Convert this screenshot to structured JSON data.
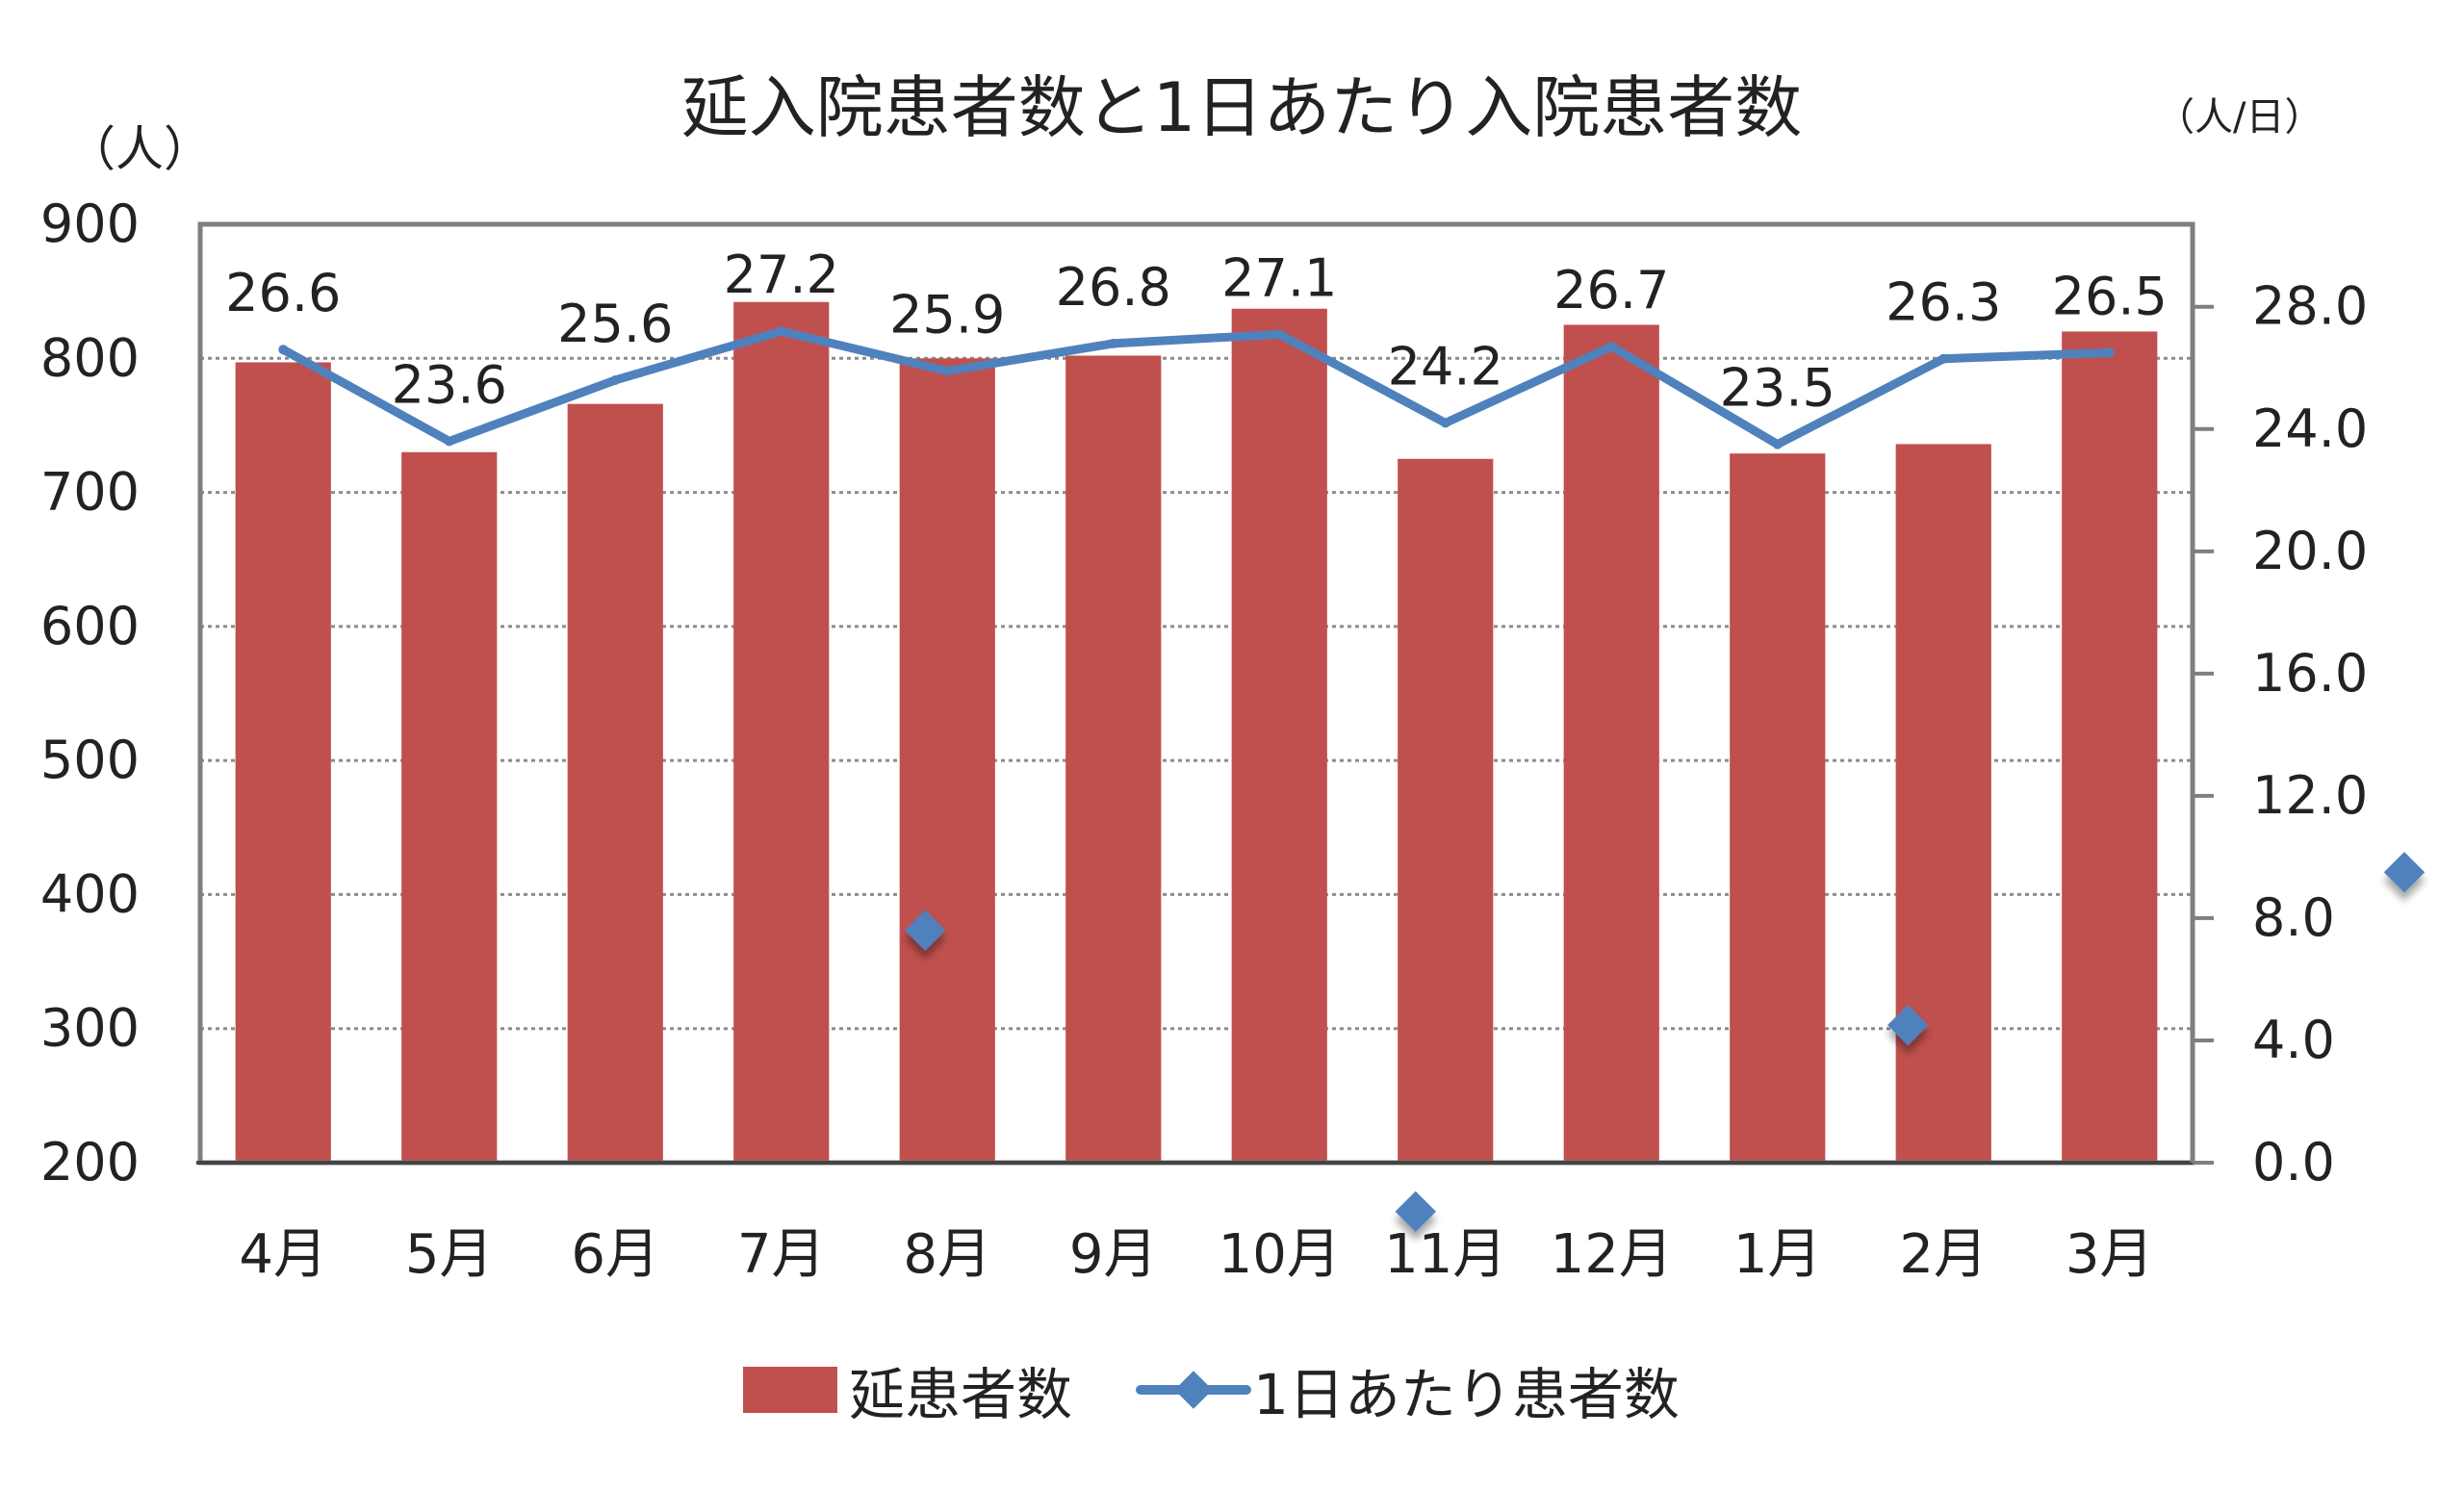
{
  "chart_data": {
    "type": "bar",
    "title": "延入院患者数と1日あたり入院患者数",
    "left_unit": "（人）",
    "right_unit": "（人/日）",
    "categories": [
      "4月",
      "5月",
      "6月",
      "7月",
      "8月",
      "9月",
      "10月",
      "11月",
      "12月",
      "1月",
      "2月",
      "3月"
    ],
    "series": [
      {
        "name": "延患者数",
        "kind": "bar",
        "axis": "left",
        "color": "#c0504d",
        "values": [
          797,
          730,
          766,
          842,
          800,
          802,
          837,
          725,
          825,
          729,
          736,
          820
        ]
      },
      {
        "name": "1日あたり患者数",
        "kind": "line",
        "axis": "right",
        "color": "#4f81bd",
        "values": [
          26.6,
          23.6,
          25.6,
          27.2,
          25.9,
          26.8,
          27.1,
          24.2,
          26.7,
          23.5,
          26.3,
          26.5
        ],
        "labels": [
          "26.6",
          "23.6",
          "25.6",
          "27.2",
          "25.9",
          "26.8",
          "27.1",
          "24.2",
          "26.7",
          "23.5",
          "26.3",
          "26.5"
        ]
      }
    ],
    "y_left": {
      "min": 200,
      "max": 900,
      "ticks": [
        900,
        800,
        700,
        600,
        500,
        400,
        300,
        200
      ]
    },
    "y_right": {
      "min": 0,
      "max": 30.7,
      "ticks": [
        "28.0",
        "24.0",
        "20.0",
        "16.0",
        "12.0",
        "8.0",
        "4.0",
        "0.0"
      ],
      "tick_values": [
        28,
        24,
        20,
        16,
        12,
        8,
        4,
        0
      ]
    },
    "grid": true,
    "legend_position": "bottom",
    "stray_markers": [
      {
        "category": "8月",
        "value": 7.6
      },
      {
        "category": "11月",
        "value": -1.6
      },
      {
        "category": "2月",
        "value": 4.5
      },
      {
        "category": "3月",
        "value": 9.5
      }
    ]
  }
}
